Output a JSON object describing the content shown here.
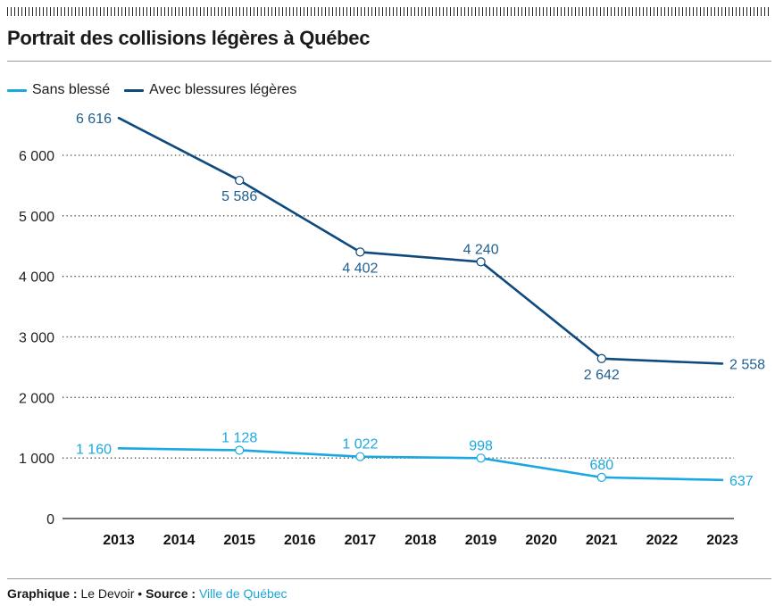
{
  "header": {
    "title": "Portrait des collisions légères à Québec"
  },
  "footer": {
    "graphique_label": "Graphique :",
    "graphique_value": "Le Devoir",
    "separator": "•",
    "source_label": "Source :",
    "source_value": "Ville de Québec"
  },
  "colors": {
    "sans_blesse": "#1ba8e0",
    "avec_blessures": "#0e4a7e",
    "label_text": "#1f5f8f",
    "grid": "#444444"
  },
  "chart_data": {
    "type": "line",
    "title": "Portrait des collisions légères à Québec",
    "xlabel": "",
    "ylabel": "",
    "ylim": [
      0,
      7000
    ],
    "yticks": [
      0,
      1000,
      2000,
      3000,
      4000,
      5000,
      6000
    ],
    "ytick_labels": [
      "0",
      "1 000",
      "2 000",
      "3 000",
      "4 000",
      "5 000",
      "6 000"
    ],
    "x": [
      2013,
      2014,
      2015,
      2016,
      2017,
      2018,
      2019,
      2020,
      2021,
      2022,
      2023
    ],
    "x_labels": [
      "2013",
      "2014",
      "2015",
      "2016",
      "2017",
      "2018",
      "2019",
      "2020",
      "2021",
      "2022",
      "2023"
    ],
    "grid": "horizontal-dotted",
    "legend": "top-left",
    "series": [
      {
        "key": "sans_blesse",
        "name": "Sans blessé",
        "x": [
          2013,
          2015,
          2017,
          2019,
          2021,
          2023
        ],
        "values": [
          1160,
          1128,
          1022,
          998,
          680,
          637
        ],
        "labels": [
          "1 160",
          "1 128",
          "1 022",
          "998",
          "680",
          "637"
        ],
        "label_positions": [
          "left",
          "above",
          "above",
          "above",
          "above",
          "right"
        ]
      },
      {
        "key": "avec_blessures",
        "name": "Avec blessures légères",
        "x": [
          2013,
          2015,
          2017,
          2019,
          2021,
          2023
        ],
        "values": [
          6616,
          5586,
          4402,
          4240,
          2642,
          2558
        ],
        "labels": [
          "6 616",
          "5 586",
          "4 402",
          "4 240",
          "2 642",
          "2 558"
        ],
        "label_positions": [
          "left",
          "below",
          "below",
          "above",
          "below",
          "right"
        ]
      }
    ]
  }
}
